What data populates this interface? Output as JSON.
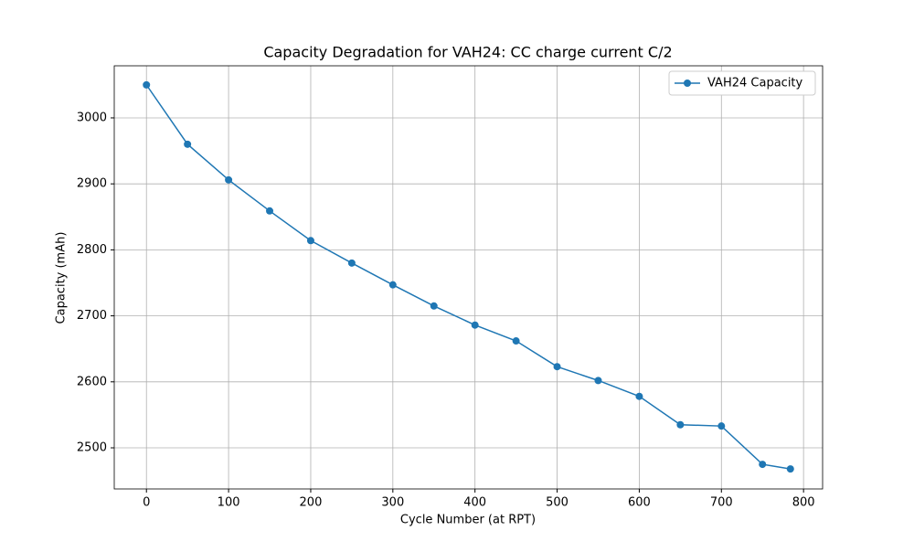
{
  "chart_data": {
    "type": "line",
    "title": "Capacity Degradation for VAH24: CC charge current C/2",
    "x_label": "Cycle Number (at RPT)",
    "y_label": "Capacity (mAh)",
    "x": [
      0,
      50,
      100,
      150,
      200,
      250,
      300,
      350,
      400,
      450,
      500,
      550,
      600,
      650,
      700,
      750,
      784
    ],
    "series": [
      {
        "name": "VAH24 Capacity",
        "color": "#1f77b4",
        "values": [
          3050,
          2960,
          2906,
          2859,
          2814,
          2780,
          2747,
          2715,
          2686,
          2662,
          2623,
          2602,
          2578,
          2535,
          2533,
          2475,
          2468
        ]
      }
    ],
    "xlim": [
      -39.2,
      823.2
    ],
    "ylim": [
      2437.7,
      3078.9
    ],
    "xticks": [
      0,
      100,
      200,
      300,
      400,
      500,
      600,
      700,
      800
    ],
    "yticks": [
      2500,
      2600,
      2700,
      2800,
      2900,
      3000
    ],
    "grid": true,
    "legend": "upper-right"
  }
}
